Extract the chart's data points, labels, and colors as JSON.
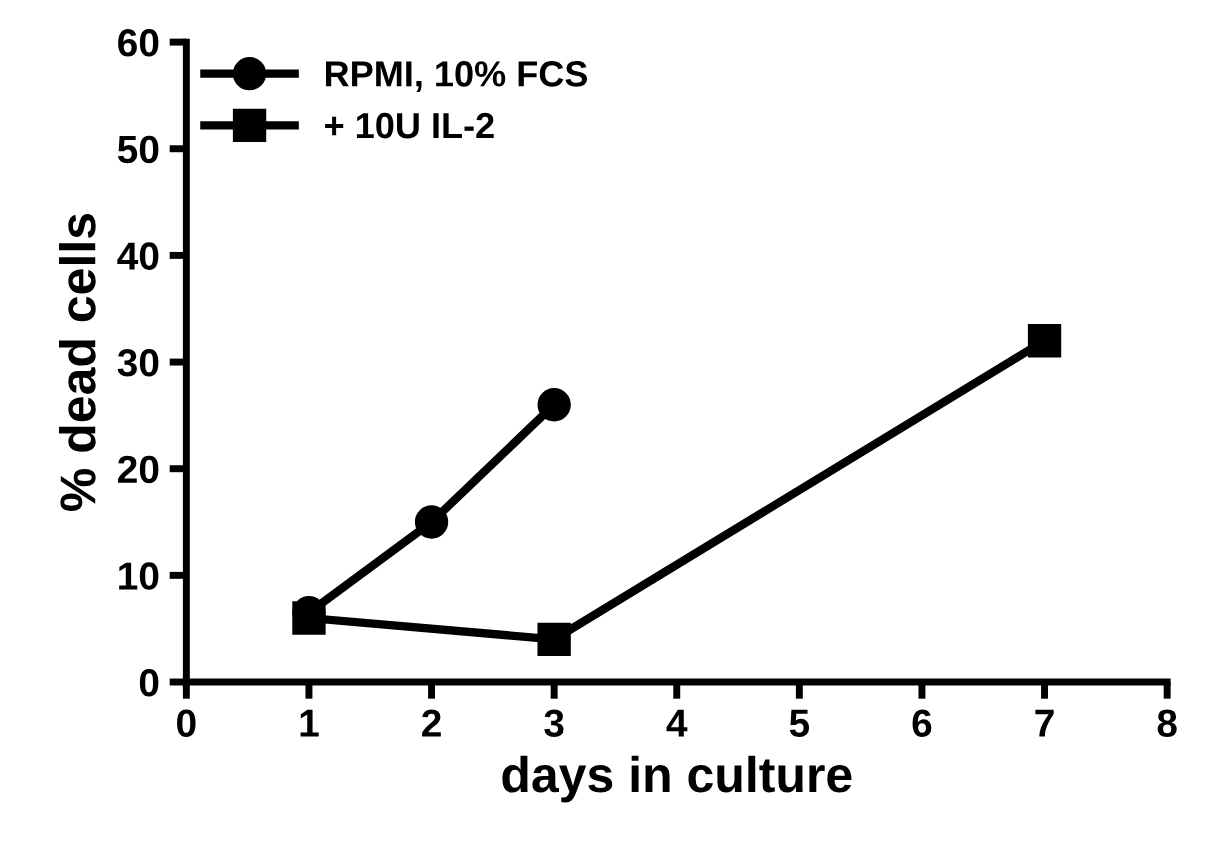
{
  "chart_data": {
    "type": "line",
    "xlabel": "days in culture",
    "ylabel": "% dead cells",
    "xlim": [
      0,
      8
    ],
    "xticks": [
      0,
      1,
      2,
      3,
      4,
      5,
      6,
      7,
      8
    ],
    "ylim": [
      0,
      60
    ],
    "yticks": [
      0,
      10,
      20,
      30,
      40,
      50,
      60
    ],
    "grid": false,
    "legend": "top left",
    "line_style": "solid",
    "series": [
      {
        "name": "RPMI, 10% FCS",
        "color": "#000000",
        "marker": "circle",
        "x": [
          1,
          2,
          3
        ],
        "values": [
          6.5,
          15,
          26
        ]
      },
      {
        "name": "+ 10U IL-2",
        "color": "#000000",
        "marker": "square",
        "x": [
          1,
          3,
          7
        ],
        "values": [
          6,
          4,
          32
        ]
      }
    ]
  }
}
